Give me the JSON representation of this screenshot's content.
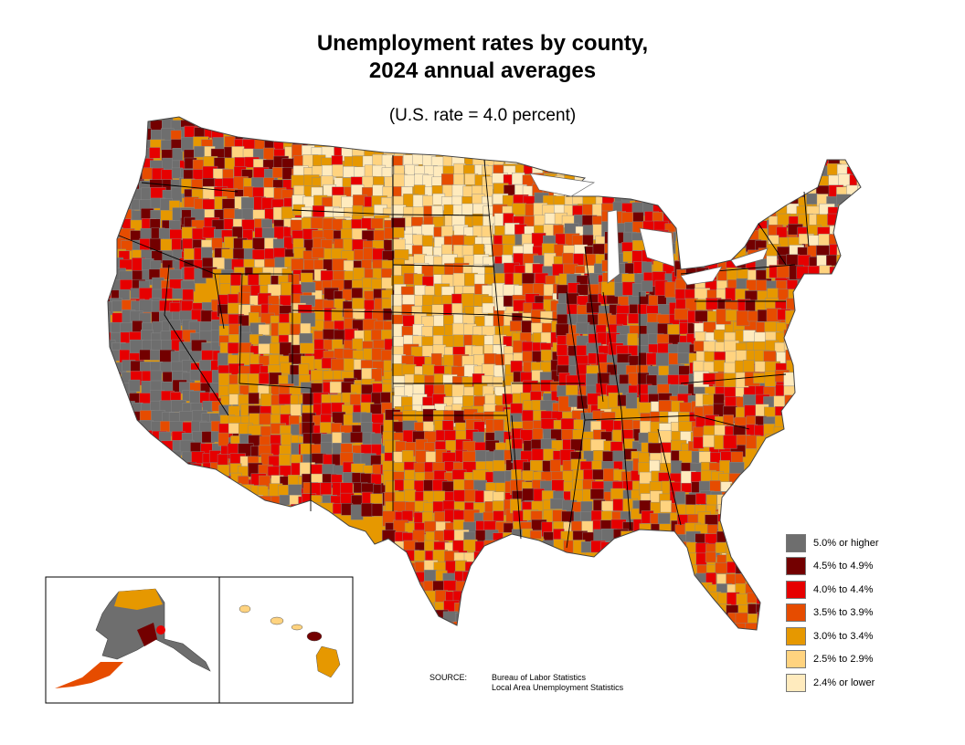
{
  "title_line1": "Unemployment rates by county,",
  "title_line2": "2024 annual averages",
  "subtitle": "(U.S. rate = 4.0 percent)",
  "legend": [
    {
      "label": "5.0% or higher",
      "color": "#6e6e6e"
    },
    {
      "label": "4.5% to 4.9%",
      "color": "#730000"
    },
    {
      "label": "4.0% to 4.4%",
      "color": "#e60000"
    },
    {
      "label": "3.5% to 3.9%",
      "color": "#e64c00"
    },
    {
      "label": "3.0% to 3.4%",
      "color": "#e69800"
    },
    {
      "label": "2.5% to 2.9%",
      "color": "#ffd37f"
    },
    {
      "label": "2.4% or lower",
      "color": "#ffebbe"
    }
  ],
  "source": {
    "key": "SOURCE:",
    "line1": "Bureau of Labor Statistics",
    "line2": "Local Area Unemployment Statistics"
  }
}
